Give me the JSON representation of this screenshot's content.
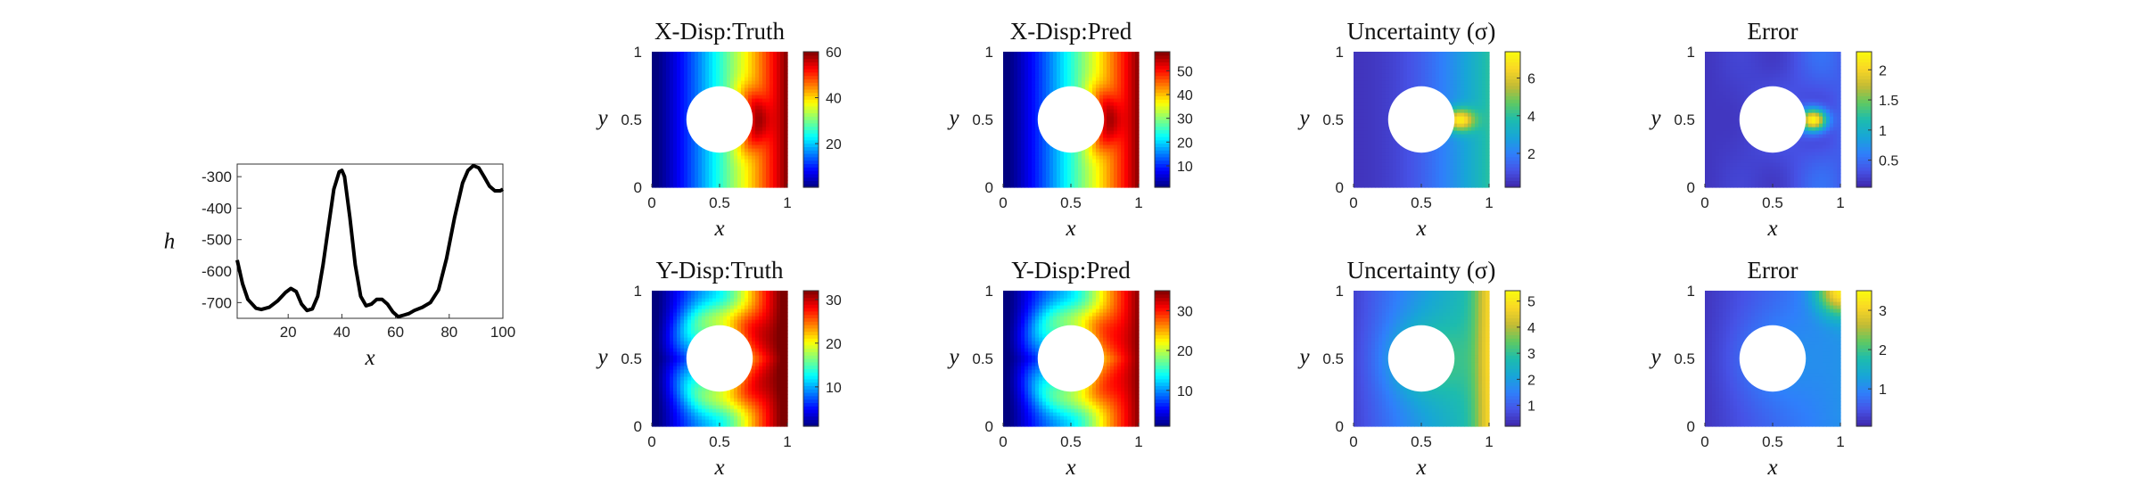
{
  "colors": {
    "jet": [
      "#00007f",
      "#0000ff",
      "#007fff",
      "#00ffff",
      "#7fff7f",
      "#ffff00",
      "#ff7f00",
      "#ff0000",
      "#7f0000"
    ],
    "parula": [
      "#3e26a8",
      "#4652e6",
      "#2f7ffb",
      "#17a6d7",
      "#1dbcae",
      "#5ec963",
      "#c4bb34",
      "#f9d626",
      "#f9fb0e"
    ],
    "line": "#000000",
    "hole": "#ffffff"
  },
  "chart_data": [
    {
      "id": "h",
      "type": "line",
      "title": "",
      "xlabel": "x",
      "ylabel": "h",
      "xlim": [
        1,
        100
      ],
      "ylim": [
        -750,
        -260
      ],
      "xticks": [
        "20",
        "40",
        "60",
        "80",
        "100"
      ],
      "yticks": [
        "-300",
        "-400",
        "-500",
        "-600",
        "-700"
      ],
      "series": [
        {
          "x": [
            1,
            3,
            5,
            8,
            10,
            13,
            16,
            19,
            21,
            23,
            25,
            27,
            29,
            31,
            33,
            35,
            37,
            39,
            40,
            41,
            43,
            45,
            47,
            49,
            51,
            53,
            55,
            57,
            59,
            61,
            63,
            65,
            67,
            70,
            73,
            76,
            79,
            82,
            85,
            87,
            89,
            91,
            93,
            95,
            97,
            99,
            100
          ],
          "values": [
            -565,
            -640,
            -690,
            -718,
            -722,
            -715,
            -695,
            -668,
            -655,
            -665,
            -705,
            -725,
            -720,
            -680,
            -580,
            -460,
            -340,
            -285,
            -280,
            -300,
            -430,
            -580,
            -680,
            -710,
            -705,
            -690,
            -690,
            -705,
            -730,
            -745,
            -740,
            -735,
            -725,
            -715,
            -700,
            -660,
            -560,
            -430,
            -320,
            -280,
            -265,
            -272,
            -300,
            -330,
            -345,
            -345,
            -340
          ]
        }
      ]
    },
    {
      "id": "xdisp-truth",
      "type": "heatmap",
      "title": "X-Disp:Truth",
      "xlabel": "x",
      "ylabel": "y",
      "xlim": [
        0,
        1
      ],
      "ylim": [
        0,
        1
      ],
      "xticks": [
        "0",
        "0.5",
        "1"
      ],
      "yticks": [
        "0",
        "0.5",
        "1"
      ],
      "colormap": "jet",
      "clim": [
        1,
        60
      ],
      "colorbar_ticks": [
        "20",
        "40",
        "60"
      ],
      "colorbar_values": [
        20,
        40,
        60
      ],
      "hole": {
        "cx": 0.5,
        "cy": 0.5,
        "r": 0.25
      }
    },
    {
      "id": "xdisp-pred",
      "type": "heatmap",
      "title": "X-Disp:Pred",
      "xlabel": "x",
      "ylabel": "y",
      "xlim": [
        0,
        1
      ],
      "ylim": [
        0,
        1
      ],
      "xticks": [
        "0",
        "0.5",
        "1"
      ],
      "yticks": [
        "0",
        "0.5",
        "1"
      ],
      "colormap": "jet",
      "clim": [
        1,
        58
      ],
      "colorbar_ticks": [
        "10",
        "20",
        "30",
        "40",
        "50"
      ],
      "colorbar_values": [
        10,
        20,
        30,
        40,
        50
      ],
      "hole": {
        "cx": 0.5,
        "cy": 0.5,
        "r": 0.25
      }
    },
    {
      "id": "xdisp-uncertainty",
      "type": "heatmap",
      "title": "Uncertainty (σ)",
      "xlabel": "x",
      "ylabel": "y",
      "xlim": [
        0,
        1
      ],
      "ylim": [
        0,
        1
      ],
      "xticks": [
        "0",
        "0.5",
        "1"
      ],
      "yticks": [
        "0",
        "0.5",
        "1"
      ],
      "colormap": "parula",
      "clim": [
        0.2,
        7.4
      ],
      "colorbar_ticks": [
        "2",
        "4",
        "6"
      ],
      "colorbar_values": [
        2,
        4,
        6
      ],
      "hole": {
        "cx": 0.5,
        "cy": 0.5,
        "r": 0.25
      }
    },
    {
      "id": "xdisp-error",
      "type": "heatmap",
      "title": "Error",
      "xlabel": "x",
      "ylabel": "y",
      "xlim": [
        0,
        1
      ],
      "ylim": [
        0,
        1
      ],
      "xticks": [
        "0",
        "0.5",
        "1"
      ],
      "yticks": [
        "0",
        "0.5",
        "1"
      ],
      "colormap": "parula",
      "clim": [
        0.05,
        2.3
      ],
      "colorbar_ticks": [
        "0.5",
        "1",
        "1.5",
        "2"
      ],
      "colorbar_values": [
        0.5,
        1,
        1.5,
        2
      ],
      "hole": {
        "cx": 0.5,
        "cy": 0.5,
        "r": 0.25
      }
    },
    {
      "id": "ydisp-truth",
      "type": "heatmap",
      "title": "Y-Disp:Truth",
      "xlabel": "x",
      "ylabel": "y",
      "xlim": [
        0,
        1
      ],
      "ylim": [
        0,
        1
      ],
      "xticks": [
        "0",
        "0.5",
        "1"
      ],
      "yticks": [
        "0",
        "0.5",
        "1"
      ],
      "colormap": "jet",
      "clim": [
        1,
        32
      ],
      "colorbar_ticks": [
        "10",
        "20",
        "30"
      ],
      "colorbar_values": [
        10,
        20,
        30
      ],
      "hole": {
        "cx": 0.5,
        "cy": 0.5,
        "r": 0.25
      }
    },
    {
      "id": "ydisp-pred",
      "type": "heatmap",
      "title": "Y-Disp:Pred",
      "xlabel": "x",
      "ylabel": "y",
      "xlim": [
        0,
        1
      ],
      "ylim": [
        0,
        1
      ],
      "xticks": [
        "0",
        "0.5",
        "1"
      ],
      "yticks": [
        "0",
        "0.5",
        "1"
      ],
      "colormap": "jet",
      "clim": [
        1,
        35
      ],
      "colorbar_ticks": [
        "10",
        "20",
        "30"
      ],
      "colorbar_values": [
        10,
        20,
        30
      ],
      "hole": {
        "cx": 0.5,
        "cy": 0.5,
        "r": 0.25
      }
    },
    {
      "id": "ydisp-uncertainty",
      "type": "heatmap",
      "title": "Uncertainty (σ)",
      "xlabel": "x",
      "ylabel": "y",
      "xlim": [
        0,
        1
      ],
      "ylim": [
        0,
        1
      ],
      "xticks": [
        "0",
        "0.5",
        "1"
      ],
      "yticks": [
        "0",
        "0.5",
        "1"
      ],
      "colormap": "parula",
      "clim": [
        0.2,
        5.4
      ],
      "colorbar_ticks": [
        "1",
        "2",
        "3",
        "4",
        "5"
      ],
      "colorbar_values": [
        1,
        2,
        3,
        4,
        5
      ],
      "hole": {
        "cx": 0.5,
        "cy": 0.5,
        "r": 0.25
      }
    },
    {
      "id": "ydisp-error",
      "type": "heatmap",
      "title": "Error",
      "xlabel": "x",
      "ylabel": "y",
      "xlim": [
        0,
        1
      ],
      "ylim": [
        0,
        1
      ],
      "xticks": [
        "0",
        "0.5",
        "1"
      ],
      "yticks": [
        "0",
        "0.5",
        "1"
      ],
      "colormap": "parula",
      "clim": [
        0.05,
        3.5
      ],
      "colorbar_ticks": [
        "1",
        "2",
        "3"
      ],
      "colorbar_values": [
        1,
        2,
        3
      ],
      "hole": {
        "cx": 0.5,
        "cy": 0.5,
        "r": 0.25
      }
    }
  ]
}
